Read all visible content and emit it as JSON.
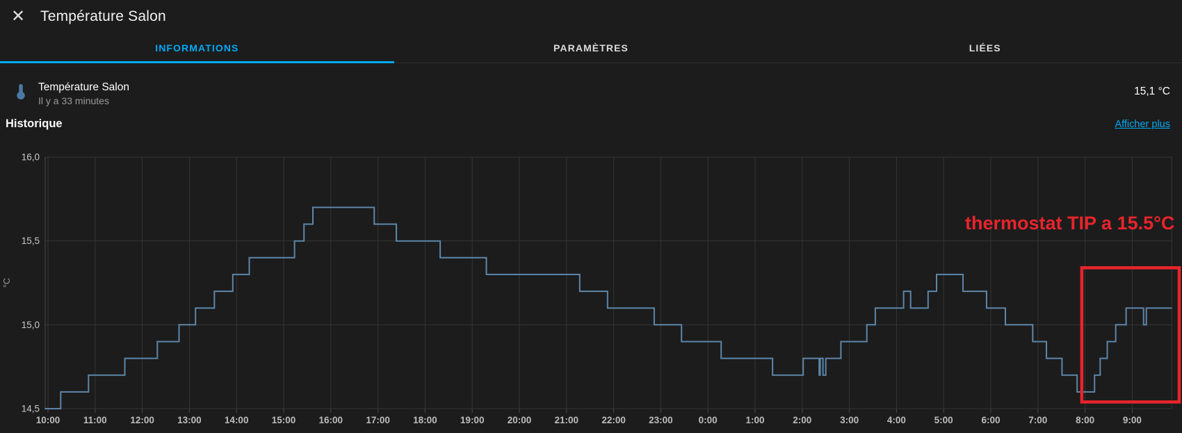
{
  "window": {
    "title": "Température Salon"
  },
  "header": {
    "close_glyph": "✕"
  },
  "tabs": [
    {
      "label": "INFORMATIONS",
      "active": true
    },
    {
      "label": "PARAMÈTRES",
      "active": false
    },
    {
      "label": "LIÉES",
      "active": false
    }
  ],
  "sensor": {
    "icon": "thermometer-icon",
    "name": "Température Salon",
    "last_changed": "Il y a 33 minutes",
    "value": "15,1 °C"
  },
  "history": {
    "title": "Historique",
    "link_label": "Afficher plus"
  },
  "colors": {
    "accent": "#03a9f4",
    "line": "#5d86aa",
    "grid": "#353535",
    "axis": "#4a4a4a",
    "tick_label": "#bdbdbd",
    "annotation": "#e8242b",
    "icon": "#4a79a4"
  },
  "chart_data": {
    "type": "line",
    "step": true,
    "title": "Historique",
    "ylabel": "°C",
    "ylim": [
      14.5,
      16.0
    ],
    "grid": true,
    "yticks": [
      {
        "v": 16.0,
        "label": "16,0"
      },
      {
        "v": 15.5,
        "label": "15,5"
      },
      {
        "v": 15.0,
        "label": "15,0"
      },
      {
        "v": 14.5,
        "label": "14,5"
      }
    ],
    "x_labels": [
      "10:00",
      "11:00",
      "12:00",
      "13:00",
      "14:00",
      "15:00",
      "16:00",
      "17:00",
      "18:00",
      "19:00",
      "20:00",
      "21:00",
      "22:00",
      "23:00",
      "0:00",
      "1:00",
      "2:00",
      "3:00",
      "4:00",
      "5:00",
      "6:00",
      "7:00",
      "8:00",
      "9:00"
    ],
    "x_unit_hours_from_first_label": true,
    "t_start": -0.07,
    "t_end": 23.84,
    "series": [
      {
        "name": "Température Salon (°C)",
        "points": [
          [
            -0.07,
            14.5
          ],
          [
            0.27,
            14.6
          ],
          [
            0.86,
            14.7
          ],
          [
            1.63,
            14.8
          ],
          [
            2.32,
            14.9
          ],
          [
            2.78,
            15.0
          ],
          [
            3.13,
            15.1
          ],
          [
            3.53,
            15.2
          ],
          [
            3.92,
            15.3
          ],
          [
            4.27,
            15.4
          ],
          [
            5.23,
            15.5
          ],
          [
            5.43,
            15.6
          ],
          [
            5.62,
            15.7
          ],
          [
            6.92,
            15.6
          ],
          [
            7.39,
            15.5
          ],
          [
            8.32,
            15.4
          ],
          [
            9.3,
            15.3
          ],
          [
            11.28,
            15.2
          ],
          [
            11.87,
            15.1
          ],
          [
            12.86,
            15.0
          ],
          [
            13.44,
            14.9
          ],
          [
            14.28,
            14.8
          ],
          [
            15.37,
            14.7
          ],
          [
            16.02,
            14.8
          ],
          [
            16.36,
            14.7
          ],
          [
            16.38,
            14.8
          ],
          [
            16.44,
            14.7
          ],
          [
            16.5,
            14.8
          ],
          [
            16.82,
            14.9
          ],
          [
            17.37,
            15.0
          ],
          [
            17.55,
            15.1
          ],
          [
            18.15,
            15.2
          ],
          [
            18.3,
            15.1
          ],
          [
            18.67,
            15.2
          ],
          [
            18.85,
            15.3
          ],
          [
            19.41,
            15.2
          ],
          [
            19.91,
            15.1
          ],
          [
            20.31,
            15.0
          ],
          [
            20.89,
            14.9
          ],
          [
            21.18,
            14.8
          ],
          [
            21.51,
            14.7
          ],
          [
            21.83,
            14.6
          ],
          [
            22.2,
            14.7
          ],
          [
            22.32,
            14.8
          ],
          [
            22.47,
            14.9
          ],
          [
            22.65,
            15.0
          ],
          [
            22.87,
            15.1
          ],
          [
            23.24,
            15.0
          ],
          [
            23.3,
            15.1
          ]
        ]
      }
    ],
    "annotations": {
      "text": "thermostat TIP a 15.5°C",
      "text_anchor": {
        "t": 23.9,
        "v": 15.57
      },
      "box": {
        "t1": 21.93,
        "t2": 24.02,
        "v1": 14.54,
        "v2": 15.34
      }
    }
  }
}
